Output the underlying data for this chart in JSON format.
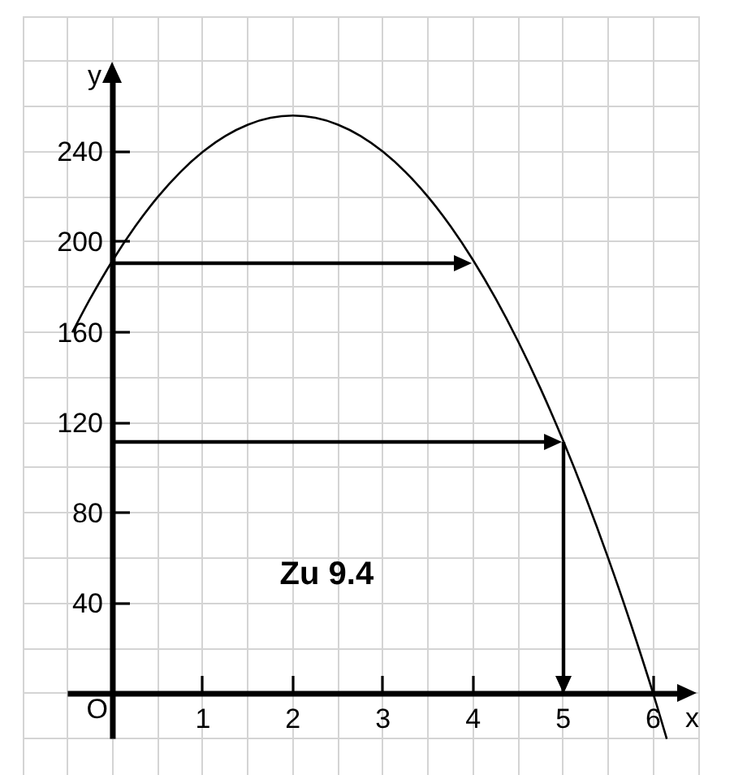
{
  "chart_data": {
    "type": "line",
    "xlabel": "x",
    "ylabel": "y",
    "xlim": [
      -1,
      6.5
    ],
    "ylim": [
      -36,
      300
    ],
    "xticks": [
      {
        "value": -1,
        "label": null
      },
      {
        "value": -0.5,
        "label": null
      },
      {
        "value": 0,
        "label": null
      },
      {
        "value": 0.5,
        "label": null
      },
      1,
      {
        "value": 1.5,
        "label": null
      },
      2,
      {
        "value": 2.5,
        "label": null
      },
      3,
      {
        "value": 3.5,
        "label": null
      },
      4,
      {
        "value": 4.5,
        "label": null
      },
      5,
      {
        "value": 5.5,
        "label": null
      },
      6,
      {
        "value": 6.5,
        "label": null
      }
    ],
    "yticks": [
      {
        "value": -20,
        "label": null
      },
      {
        "value": 0,
        "label": null
      },
      {
        "value": 20,
        "label": null
      },
      40,
      {
        "value": 60,
        "label": null
      },
      80,
      {
        "value": 100,
        "label": null
      },
      120,
      {
        "value": 140,
        "label": null
      },
      160,
      {
        "value": 180,
        "label": null
      },
      200,
      {
        "value": 220,
        "label": null
      },
      240,
      {
        "value": 260,
        "label": null
      },
      {
        "value": 280,
        "label": null
      },
      {
        "value": 300,
        "label": null
      }
    ],
    "grid": true,
    "marker": "none",
    "line_style": "solid",
    "series": [
      {
        "color": "#000000",
        "x": [
          -0.45,
          -0.25,
          0,
          0.25,
          0.5,
          0.75,
          1,
          1.25,
          1.5,
          1.75,
          2,
          2.25,
          2.5,
          2.75,
          3,
          3.25,
          3.5,
          3.75,
          4,
          4.25,
          4.5,
          4.75,
          5,
          5.25,
          5.5,
          5.75,
          6,
          6.15
        ],
        "values": [
          160,
          175,
          192,
          207,
          220,
          231,
          240,
          247,
          252,
          255,
          256,
          255,
          252,
          247,
          240,
          231,
          220,
          207,
          192,
          175,
          156,
          135,
          112,
          87,
          60,
          31,
          0,
          -20
        ]
      }
    ],
    "annotations": [
      "O",
      "Zu 9.4"
    ]
  }
}
